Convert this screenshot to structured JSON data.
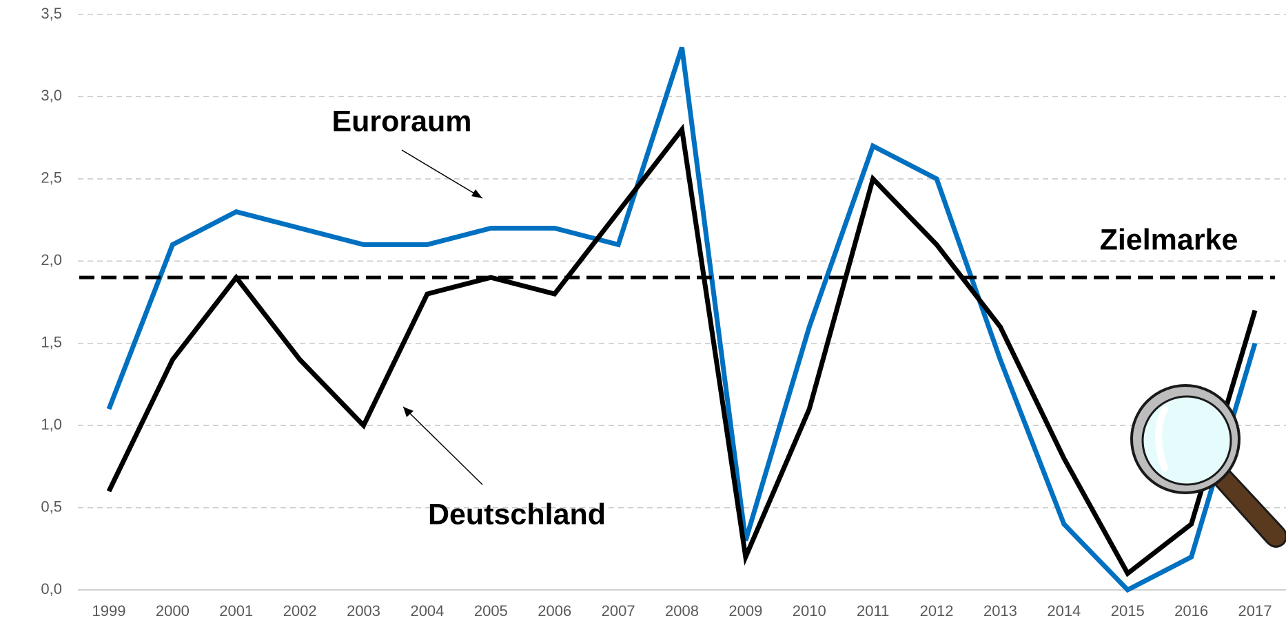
{
  "chart_data": {
    "type": "line",
    "categories": [
      "1999",
      "2000",
      "2001",
      "2002",
      "2003",
      "2004",
      "2005",
      "2006",
      "2007",
      "2008",
      "2009",
      "2010",
      "2011",
      "2012",
      "2013",
      "2014",
      "2015",
      "2016",
      "2017"
    ],
    "series": [
      {
        "name": "Euroraum",
        "color": "#0070c0",
        "values": [
          1.1,
          2.1,
          2.3,
          2.2,
          2.1,
          2.1,
          2.2,
          2.2,
          2.1,
          3.3,
          0.3,
          1.6,
          2.7,
          2.5,
          1.4,
          0.4,
          0.0,
          0.2,
          1.5
        ]
      },
      {
        "name": "Deutschland",
        "color": "#000000",
        "values": [
          0.6,
          1.4,
          1.9,
          1.4,
          1.0,
          1.8,
          1.9,
          1.8,
          2.3,
          2.8,
          0.2,
          1.1,
          2.5,
          2.1,
          1.6,
          0.8,
          0.1,
          0.4,
          1.7
        ]
      }
    ],
    "reference_line": {
      "label": "Zielmarke",
      "value": 1.9
    },
    "ylim": [
      0,
      3.5
    ],
    "yticks": [
      {
        "value": 0,
        "label": "0,0"
      },
      {
        "value": 0.5,
        "label": "0,5"
      },
      {
        "value": 1,
        "label": "1,0"
      },
      {
        "value": 1.5,
        "label": "1,5"
      },
      {
        "value": 2,
        "label": "2,0"
      },
      {
        "value": 2.5,
        "label": "2,5"
      },
      {
        "value": 3,
        "label": "3,0"
      },
      {
        "value": 3.5,
        "label": "3,5"
      }
    ],
    "grid": true
  }
}
